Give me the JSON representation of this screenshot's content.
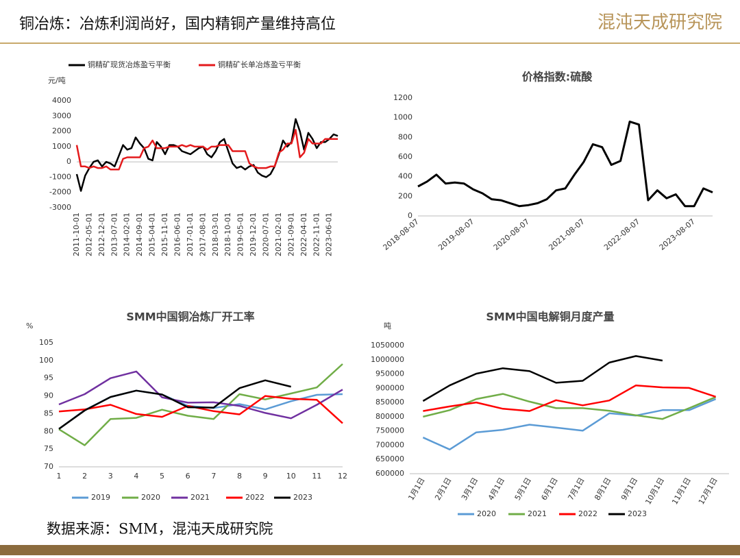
{
  "header": {
    "title": "铜冶炼：冶炼利润尚好，国内精铜产量维持高位",
    "logo": "混沌天成研究院"
  },
  "footer": {
    "source": "数据来源：SMM，混沌天成研究院"
  },
  "chart_data": [
    {
      "type": "line",
      "y_label": "元/吨",
      "categories": [
        "2011-10-01",
        null,
        null,
        "2012-05-01",
        null,
        null,
        "2012-12-01",
        null,
        null,
        "2013-07-01",
        null,
        null,
        "2014-02-01",
        null,
        null,
        "2014-09-01",
        null,
        null,
        "2015-04-01",
        null,
        null,
        "2015-11-01",
        null,
        null,
        "2016-06-01",
        null,
        null,
        "2017-01-01",
        null,
        null,
        "2017-08-01",
        null,
        null,
        "2018-03-01",
        null,
        null,
        "2018-10-01",
        null,
        null,
        "2019-05-01",
        null,
        null,
        "2019-12-01",
        null,
        null,
        "2020-07-01",
        null,
        null,
        "2021-02-01",
        null,
        null,
        "2021-09-01",
        null,
        null,
        "2022-04-01",
        null,
        null,
        "2022-11-01",
        null,
        null,
        "2023-06-01",
        null,
        null
      ],
      "series": [
        {
          "name": "铜精矿现货冶炼盈亏平衡",
          "color": "#000000",
          "values": [
            -800,
            -1900,
            -900,
            -400,
            0,
            100,
            -300,
            0,
            -100,
            -300,
            400,
            1100,
            800,
            900,
            1600,
            1200,
            900,
            200,
            100,
            1300,
            1000,
            500,
            1100,
            1100,
            1000,
            700,
            600,
            500,
            700,
            900,
            1000,
            500,
            300,
            700,
            1300,
            1500,
            700,
            -100,
            -400,
            -300,
            -500,
            -300,
            -200,
            -700,
            -900,
            -1000,
            -800,
            -300,
            500,
            1400,
            1000,
            1300,
            2800,
            2000,
            800,
            1900,
            1500,
            900,
            1300,
            1300,
            1500,
            1800,
            1700
          ]
        },
        {
          "name": "铜精矿长单冶炼盈亏平衡",
          "color": "#e41a1c",
          "values": [
            1100,
            -300,
            -300,
            -400,
            -300,
            -400,
            -400,
            -300,
            -500,
            -500,
            -500,
            200,
            300,
            300,
            300,
            300,
            900,
            1000,
            1400,
            900,
            900,
            900,
            1000,
            1000,
            1000,
            1100,
            1000,
            1100,
            1000,
            1000,
            1000,
            800,
            1000,
            1000,
            1100,
            1100,
            1100,
            700,
            700,
            700,
            700,
            -100,
            -300,
            -400,
            -400,
            -400,
            -300,
            -300,
            600,
            800,
            1200,
            1200,
            2100,
            300,
            600,
            1500,
            1200,
            1200,
            1200,
            1500,
            1500,
            1500,
            1500
          ]
        }
      ],
      "ylim": [
        -3000,
        4000
      ],
      "yticks": [
        -3000,
        -2000,
        -1000,
        0,
        1000,
        2000,
        3000,
        4000
      ],
      "grid": false,
      "legend": "top"
    },
    {
      "type": "line",
      "title": "价格指数:硫酸",
      "categories": [
        "2018-08-07",
        null,
        null,
        null,
        null,
        null,
        "2019-08-07",
        null,
        null,
        null,
        null,
        null,
        "2020-08-07",
        null,
        null,
        null,
        null,
        null,
        "2021-08-07",
        null,
        null,
        null,
        null,
        null,
        "2022-08-07",
        null,
        null,
        null,
        null,
        null,
        "2023-08-07",
        null,
        null
      ],
      "series": [
        {
          "name": null,
          "color": "#000000",
          "values": [
            300,
            350,
            420,
            330,
            340,
            330,
            270,
            230,
            170,
            160,
            130,
            100,
            110,
            130,
            170,
            260,
            280,
            420,
            550,
            730,
            700,
            520,
            560,
            960,
            930,
            160,
            260,
            180,
            220,
            100,
            100,
            280,
            240
          ]
        }
      ],
      "ylim": [
        0,
        1200
      ],
      "yticks": [
        0,
        200,
        400,
        600,
        800,
        1000,
        1200
      ],
      "grid": false
    },
    {
      "type": "line",
      "title": "SMM中国铜冶炼厂开工率",
      "y_label": "%",
      "categories": [
        "1",
        "2",
        "3",
        "4",
        "5",
        "6",
        "7",
        "8",
        "9",
        "10",
        "11",
        "12"
      ],
      "series": [
        {
          "name": "2019",
          "color": "#5b9bd5",
          "values": [
            80.7,
            86,
            89.7,
            91.5,
            90.4,
            87.2,
            86.6,
            87.7,
            86.2,
            88.5,
            90.3,
            90.5
          ]
        },
        {
          "name": "2020",
          "color": "#70ad47",
          "values": [
            80.6,
            76.1,
            83.5,
            83.8,
            86.1,
            84.4,
            83.5,
            90.5,
            89,
            90.7,
            92.4,
            99
          ]
        },
        {
          "name": "2021",
          "color": "#7030a0",
          "values": [
            87.6,
            90.5,
            95,
            96.9,
            89.6,
            88.1,
            88.2,
            87.2,
            85.2,
            83.7,
            87.5,
            91.8
          ]
        },
        {
          "name": "2022",
          "color": "#ff0000",
          "values": [
            85.6,
            86.2,
            87.5,
            84.9,
            84.1,
            87.2,
            85.7,
            84.8,
            90,
            89.2,
            88.9,
            82.3
          ]
        },
        {
          "name": "2023",
          "color": "#000000",
          "values": [
            80.7,
            85.9,
            89.7,
            91.5,
            90.4,
            86.8,
            86.7,
            92.2,
            94.4,
            92.6,
            null,
            null
          ]
        }
      ],
      "ylim": [
        70,
        105
      ],
      "yticks": [
        70,
        75,
        80,
        85,
        90,
        95,
        100,
        105
      ],
      "grid": false,
      "legend": "bottom"
    },
    {
      "type": "line",
      "title": "SMM中国电解铜月度产量",
      "y_label": "吨",
      "categories": [
        "1月1日",
        "2月1日",
        "3月1日",
        "4月1日",
        "5月1日",
        "6月1日",
        "7月1日",
        "8月1日",
        "9月1日",
        "10月1日",
        "11月1日",
        "12月1日"
      ],
      "series": [
        {
          "name": "2020",
          "color": "#5b9bd5",
          "values": [
            727000,
            685000,
            745000,
            754000,
            772000,
            762000,
            751000,
            812000,
            804000,
            823000,
            823000,
            862000
          ]
        },
        {
          "name": "2021",
          "color": "#70ad47",
          "values": [
            800000,
            823000,
            862000,
            880000,
            853000,
            830000,
            830000,
            821000,
            805000,
            792000,
            830000,
            869000
          ]
        },
        {
          "name": "2022",
          "color": "#ff0000",
          "values": [
            820000,
            836000,
            850000,
            828000,
            820000,
            858000,
            840000,
            857000,
            910000,
            903000,
            901000,
            870000
          ]
        },
        {
          "name": "2023",
          "color": "#000000",
          "values": [
            855000,
            910000,
            951000,
            970000,
            960000,
            919000,
            926000,
            990000,
            1013000,
            997000,
            null,
            null
          ]
        }
      ],
      "ylim": [
        600000,
        1050000
      ],
      "yticks": [
        600000,
        650000,
        700000,
        750000,
        800000,
        850000,
        900000,
        950000,
        1000000,
        1050000
      ],
      "grid": false,
      "legend": "bottom"
    }
  ]
}
